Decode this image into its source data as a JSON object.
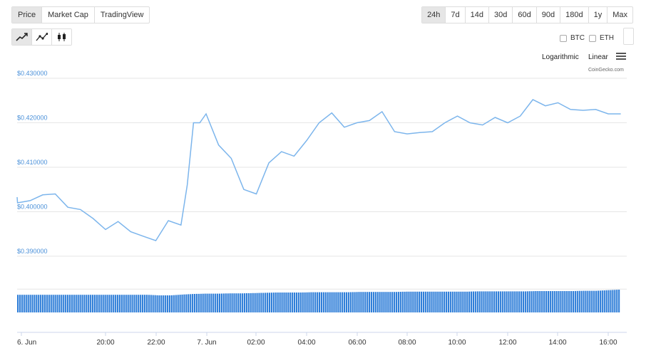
{
  "view_tabs": [
    "Price",
    "Market Cap",
    "TradingView"
  ],
  "active_view": "Price",
  "range_tabs": [
    "24h",
    "7d",
    "14d",
    "30d",
    "60d",
    "90d",
    "180d",
    "1y",
    "Max"
  ],
  "active_range": "24h",
  "chart_type_icons": [
    "line-chart-icon",
    "line-points-chart-icon",
    "candlestick-icon"
  ],
  "compare": {
    "btc": "BTC",
    "eth": "ETH"
  },
  "scale": {
    "log": "Logarithmic",
    "linear": "Linear"
  },
  "credit": "CoinGecko.com",
  "colors": {
    "line": "#7cb5ec",
    "volume": "#2f7ed8",
    "ylabel": "#4a90d9"
  },
  "chart_data": {
    "type": "line",
    "title": "",
    "xlabel": "",
    "ylabel": "",
    "ylim": [
      0.385,
      0.432
    ],
    "y_ticks": [
      "$0.430000",
      "$0.420000",
      "$0.410000",
      "$0.400000",
      "$0.390000"
    ],
    "x_ticks": [
      "6. Jun",
      "20:00",
      "22:00",
      "7. Jun",
      "02:00",
      "04:00",
      "06:00",
      "08:00",
      "10:00",
      "12:00",
      "14:00",
      "16:00"
    ],
    "grid": true,
    "series": [
      {
        "x": [
          "6. Jun 16:00",
          "6. Jun 16:30",
          "6. Jun 17:00",
          "6. Jun 17:30",
          "6. Jun 18:00",
          "6. Jun 18:30",
          "6. Jun 19:00",
          "6. Jun 19:30",
          "6. Jun 20:00",
          "6. Jun 20:30",
          "6. Jun 21:00",
          "6. Jun 21:30",
          "6. Jun 22:00",
          "6. Jun 22:30",
          "6. Jun 23:00",
          "6. Jun 23:15",
          "6. Jun 23:30",
          "6. Jun 23:45",
          "7. Jun 00:00",
          "7. Jun 00:30",
          "7. Jun 01:00",
          "7. Jun 01:30",
          "7. Jun 02:00",
          "7. Jun 02:30",
          "7. Jun 03:00",
          "7. Jun 03:30",
          "7. Jun 04:00",
          "7. Jun 04:30",
          "7. Jun 05:00",
          "7. Jun 05:30",
          "7. Jun 06:00",
          "7. Jun 06:30",
          "7. Jun 07:00",
          "7. Jun 07:30",
          "7. Jun 08:00",
          "7. Jun 08:30",
          "7. Jun 09:00",
          "7. Jun 09:30",
          "7. Jun 10:00",
          "7. Jun 10:30",
          "7. Jun 11:00",
          "7. Jun 11:30",
          "7. Jun 12:00",
          "7. Jun 12:30",
          "7. Jun 13:00",
          "7. Jun 13:30",
          "7. Jun 14:00",
          "7. Jun 14:30",
          "7. Jun 15:00",
          "7. Jun 15:30",
          "7. Jun 16:00",
          "7. Jun 16:30"
        ],
        "values": [
          0.4033,
          0.402,
          0.4025,
          0.4038,
          0.404,
          0.401,
          0.4005,
          0.3985,
          0.396,
          0.3978,
          0.3955,
          0.3945,
          0.3935,
          0.398,
          0.397,
          0.406,
          0.42,
          0.42,
          0.422,
          0.415,
          0.412,
          0.405,
          0.404,
          0.411,
          0.4135,
          0.4125,
          0.416,
          0.42,
          0.4222,
          0.419,
          0.42,
          0.4205,
          0.4225,
          0.418,
          0.4175,
          0.4178,
          0.418,
          0.42,
          0.4215,
          0.42,
          0.4195,
          0.4212,
          0.42,
          0.4215,
          0.4252,
          0.4238,
          0.4245,
          0.423,
          0.4228,
          0.423,
          0.422,
          0.422
        ]
      }
    ],
    "volume": {
      "series_note": "",
      "values": [
        0.62,
        0.62,
        0.62,
        0.62,
        0.62,
        0.62,
        0.62,
        0.62,
        0.62,
        0.62,
        0.62,
        0.62,
        0.6,
        0.6,
        0.63,
        0.65,
        0.66,
        0.66,
        0.67,
        0.67,
        0.68,
        0.69,
        0.7,
        0.7,
        0.7,
        0.71,
        0.71,
        0.71,
        0.71,
        0.72,
        0.72,
        0.72,
        0.72,
        0.73,
        0.73,
        0.73,
        0.73,
        0.73,
        0.73,
        0.74,
        0.74,
        0.74,
        0.74,
        0.74,
        0.75,
        0.75,
        0.75,
        0.75,
        0.76,
        0.76,
        0.78,
        0.8
      ]
    }
  }
}
